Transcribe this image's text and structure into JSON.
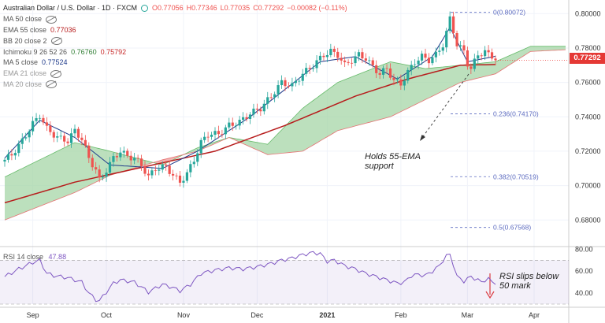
{
  "header": {
    "symbol_title": "Australian Dollar / U.S. Dollar · 1D · FXCM",
    "open": "O0.77056",
    "high": "H0.77346",
    "low": "L0.77035",
    "close": "C0.77292",
    "change": "−0.00082 (−0.11%)"
  },
  "indicators": [
    {
      "label": "MA 50 close",
      "value": "",
      "icon": "eye-hidden-icon"
    },
    {
      "label": "EMA 55 close",
      "value": "0.77036",
      "icon": ""
    },
    {
      "label": "BB 20 close 2",
      "value": "",
      "icon": "eye-hidden-icon"
    },
    {
      "label": "Ichimoku 9 26 52 26",
      "value": "0.76760",
      "value2": "0.75792",
      "icon": ""
    },
    {
      "label": "MA 5 close",
      "value": "0.77524",
      "icon": ""
    },
    {
      "label": "EMA 21 close",
      "value": "",
      "icon": "eye-hidden-icon"
    },
    {
      "label": "MA 20 close",
      "value": "",
      "icon": "eye-hidden-icon"
    }
  ],
  "last_price": "0.77292",
  "rsi": {
    "label": "RSI 14 close",
    "value": "47.88"
  },
  "annotations": {
    "support_line1": "Holds 55-EMA",
    "support_line2": "support",
    "rsi_line1": "RSI slips below",
    "rsi_line2": "50 mark"
  },
  "fib_levels": [
    {
      "label": "0(0.80072)",
      "value": 0.80072
    },
    {
      "label": "0.236(0.74170)",
      "value": 0.7417
    },
    {
      "label": "0.382(0.70519)",
      "value": 0.70519
    },
    {
      "label": "0.5(0.67568)",
      "value": 0.67568
    }
  ],
  "colors": {
    "up": "#26a69a",
    "down": "#ef5350",
    "ema": "#b71c1c",
    "ma5": "#1e3a8a",
    "cloud_up": "#a5d6a7",
    "cloud_down": "#ef9a9a",
    "rsi": "#7e57c2",
    "fib": "#5c6bc0"
  },
  "chart_data": [
    {
      "type": "candlestick",
      "title": "Australian Dollar / U.S. Dollar · 1D · FXCM",
      "x_range": [
        0,
        160
      ],
      "ylim": [
        0.665,
        0.807
      ],
      "y_ticks": [
        "0.80000",
        "0.78000",
        "0.76000",
        "0.74000",
        "0.72000",
        "0.70000",
        "0.68000"
      ],
      "y_tick_values": [
        0.8,
        0.78,
        0.76,
        0.74,
        0.72,
        0.7,
        0.68
      ],
      "x_tick_labels": [
        "Sep",
        "Oct",
        "Nov",
        "Dec",
        "2021",
        "Feb",
        "Mar",
        "Apr"
      ],
      "x_tick_index": [
        8,
        29,
        51,
        72,
        92,
        113,
        132,
        151
      ],
      "last_index": 140,
      "close_key_points": [
        [
          0,
          0.715
        ],
        [
          2,
          0.718
        ],
        [
          5,
          0.726
        ],
        [
          8,
          0.736
        ],
        [
          10,
          0.741
        ],
        [
          12,
          0.733
        ],
        [
          15,
          0.728
        ],
        [
          18,
          0.726
        ],
        [
          20,
          0.732
        ],
        [
          22,
          0.727
        ],
        [
          24,
          0.716
        ],
        [
          26,
          0.709
        ],
        [
          27,
          0.703
        ],
        [
          29,
          0.709
        ],
        [
          31,
          0.716
        ],
        [
          33,
          0.72
        ],
        [
          35,
          0.717
        ],
        [
          37,
          0.716
        ],
        [
          39,
          0.712
        ],
        [
          41,
          0.705
        ],
        [
          43,
          0.71
        ],
        [
          46,
          0.711
        ],
        [
          48,
          0.706
        ],
        [
          50,
          0.702
        ],
        [
          52,
          0.707
        ],
        [
          54,
          0.715
        ],
        [
          56,
          0.725
        ],
        [
          58,
          0.73
        ],
        [
          61,
          0.73
        ],
        [
          64,
          0.735
        ],
        [
          67,
          0.737
        ],
        [
          70,
          0.742
        ],
        [
          73,
          0.745
        ],
        [
          76,
          0.752
        ],
        [
          79,
          0.76
        ],
        [
          82,
          0.758
        ],
        [
          85,
          0.765
        ],
        [
          88,
          0.77
        ],
        [
          91,
          0.776
        ],
        [
          93,
          0.778
        ],
        [
          95,
          0.776
        ],
        [
          97,
          0.77
        ],
        [
          99,
          0.773
        ],
        [
          101,
          0.776
        ],
        [
          103,
          0.774
        ],
        [
          105,
          0.769
        ],
        [
          107,
          0.765
        ],
        [
          109,
          0.768
        ],
        [
          111,
          0.761
        ],
        [
          113,
          0.759
        ],
        [
          115,
          0.766
        ],
        [
          117,
          0.772
        ],
        [
          119,
          0.775
        ],
        [
          121,
          0.773
        ],
        [
          123,
          0.776
        ],
        [
          125,
          0.782
        ],
        [
          126,
          0.789
        ],
        [
          127,
          0.797
        ],
        [
          128,
          0.79
        ],
        [
          129,
          0.782
        ],
        [
          131,
          0.778
        ],
        [
          132,
          0.771
        ],
        [
          133,
          0.768
        ],
        [
          134,
          0.772
        ],
        [
          135,
          0.776
        ],
        [
          136,
          0.777
        ],
        [
          137,
          0.778
        ],
        [
          138,
          0.776
        ],
        [
          139,
          0.775
        ],
        [
          140,
          0.7729
        ]
      ],
      "ema55_key_points": [
        [
          0,
          0.69
        ],
        [
          20,
          0.702
        ],
        [
          40,
          0.711
        ],
        [
          60,
          0.72
        ],
        [
          80,
          0.735
        ],
        [
          100,
          0.752
        ],
        [
          115,
          0.762
        ],
        [
          130,
          0.77
        ],
        [
          140,
          0.7704
        ]
      ],
      "ma5_key_points": [
        [
          0,
          0.716
        ],
        [
          10,
          0.738
        ],
        [
          20,
          0.728
        ],
        [
          30,
          0.712
        ],
        [
          45,
          0.71
        ],
        [
          55,
          0.72
        ],
        [
          70,
          0.74
        ],
        [
          90,
          0.772
        ],
        [
          100,
          0.775
        ],
        [
          112,
          0.762
        ],
        [
          122,
          0.775
        ],
        [
          127,
          0.792
        ],
        [
          132,
          0.772
        ],
        [
          140,
          0.7752
        ]
      ],
      "cloud_a_key_points": [
        [
          0,
          0.705
        ],
        [
          20,
          0.725
        ],
        [
          30,
          0.72
        ],
        [
          45,
          0.712
        ],
        [
          55,
          0.722
        ],
        [
          64,
          0.728
        ],
        [
          75,
          0.724
        ],
        [
          85,
          0.745
        ],
        [
          95,
          0.76
        ],
        [
          110,
          0.772
        ],
        [
          120,
          0.768
        ],
        [
          130,
          0.77
        ],
        [
          140,
          0.772
        ],
        [
          150,
          0.781
        ],
        [
          160,
          0.781
        ]
      ],
      "cloud_b_key_points": [
        [
          0,
          0.68
        ],
        [
          20,
          0.696
        ],
        [
          30,
          0.706
        ],
        [
          45,
          0.715
        ],
        [
          55,
          0.72
        ],
        [
          64,
          0.728
        ],
        [
          75,
          0.718
        ],
        [
          85,
          0.72
        ],
        [
          95,
          0.732
        ],
        [
          110,
          0.74
        ],
        [
          120,
          0.75
        ],
        [
          130,
          0.76
        ],
        [
          140,
          0.765
        ],
        [
          150,
          0.778
        ],
        [
          160,
          0.779
        ]
      ]
    },
    {
      "type": "line",
      "title": "RSI 14 close",
      "ylim": [
        30,
        81
      ],
      "y_ticks": [
        "80.00",
        "60.00",
        "40.00"
      ],
      "y_tick_values": [
        80,
        60,
        40
      ],
      "band": [
        30,
        70
      ],
      "values_key_points": [
        [
          0,
          55
        ],
        [
          4,
          62
        ],
        [
          8,
          68
        ],
        [
          10,
          70
        ],
        [
          12,
          58
        ],
        [
          14,
          56
        ],
        [
          18,
          54
        ],
        [
          22,
          50
        ],
        [
          24,
          40
        ],
        [
          26,
          34
        ],
        [
          27,
          33
        ],
        [
          29,
          41
        ],
        [
          31,
          49
        ],
        [
          33,
          52
        ],
        [
          37,
          50
        ],
        [
          41,
          41
        ],
        [
          45,
          48
        ],
        [
          48,
          45
        ],
        [
          50,
          42
        ],
        [
          53,
          48
        ],
        [
          56,
          58
        ],
        [
          60,
          61
        ],
        [
          64,
          63
        ],
        [
          68,
          62
        ],
        [
          72,
          64
        ],
        [
          76,
          67
        ],
        [
          79,
          70
        ],
        [
          82,
          72
        ],
        [
          85,
          75
        ],
        [
          88,
          77
        ],
        [
          90,
          76
        ],
        [
          92,
          69
        ],
        [
          94,
          70
        ],
        [
          97,
          65
        ],
        [
          100,
          62
        ],
        [
          103,
          58
        ],
        [
          106,
          55
        ],
        [
          109,
          52
        ],
        [
          112,
          49
        ],
        [
          114,
          50
        ],
        [
          116,
          56
        ],
        [
          118,
          57
        ],
        [
          120,
          56
        ],
        [
          122,
          60
        ],
        [
          124,
          65
        ],
        [
          125,
          70
        ],
        [
          126,
          74
        ],
        [
          127,
          75
        ],
        [
          128,
          66
        ],
        [
          129,
          55
        ],
        [
          131,
          51
        ],
        [
          133,
          55
        ],
        [
          135,
          52
        ],
        [
          136,
          50
        ],
        [
          137,
          52
        ],
        [
          138,
          53
        ],
        [
          139,
          50
        ],
        [
          140,
          47.88
        ]
      ]
    }
  ]
}
